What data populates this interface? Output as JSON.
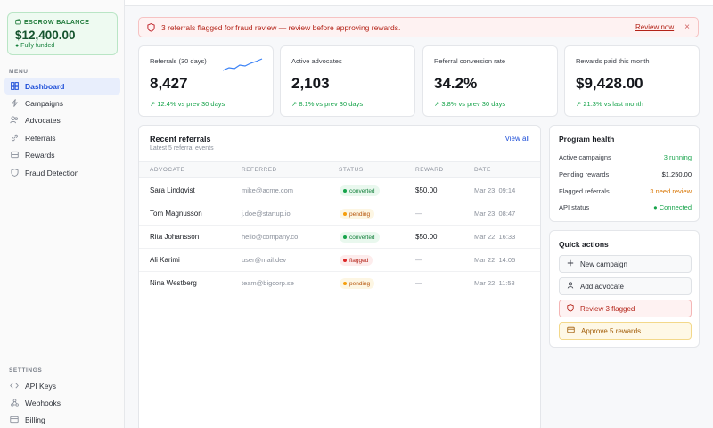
{
  "sidebar": {
    "escrow": {
      "label": "ESCROW BALANCE",
      "amount": "$12,400.00",
      "status": "● Fully funded"
    },
    "menu_label": "MENU",
    "menu_items": [
      {
        "label": "Dashboard",
        "icon": "grid-icon",
        "active": true
      },
      {
        "label": "Campaigns",
        "icon": "lightning-icon"
      },
      {
        "label": "Advocates",
        "icon": "users-icon"
      },
      {
        "label": "Referrals",
        "icon": "link-icon"
      },
      {
        "label": "Rewards",
        "icon": "box-icon"
      },
      {
        "label": "Fraud Detection",
        "icon": "shield-icon"
      }
    ],
    "settings_label": "SETTINGS",
    "settings_items": [
      {
        "label": "API Keys",
        "icon": "code-icon"
      },
      {
        "label": "Webhooks",
        "icon": "webhook-icon"
      },
      {
        "label": "Billing",
        "icon": "card-icon"
      }
    ]
  },
  "alert": {
    "text": "3 referrals flagged for fraud review — review before approving rewards.",
    "action": "Review now",
    "close": "×"
  },
  "kpis": [
    {
      "label": "Referrals (30 days)",
      "value": "8,427",
      "delta": "12.4% vs prev 30 days"
    },
    {
      "label": "Active advocates",
      "value": "2,103",
      "delta": "8.1% vs prev 30 days"
    },
    {
      "label": "Referral conversion rate",
      "value": "34.2%",
      "delta": "3.8% vs prev 30 days"
    },
    {
      "label": "Rewards paid this month",
      "value": "$9,428.00",
      "delta": "21.3% vs last month"
    }
  ],
  "recent": {
    "title": "Recent referrals",
    "subtitle": "Latest 5 referral events",
    "view_all": "View all",
    "columns": [
      "ADVOCATE",
      "REFERRED",
      "STATUS",
      "REWARD",
      "DATE"
    ],
    "rows": [
      {
        "advocate": "Sara Lindqvist",
        "referred": "mike@acme.com",
        "status": "converted",
        "reward": "$50.00",
        "date": "Mar 23, 09:14"
      },
      {
        "advocate": "Tom Magnusson",
        "referred": "j.doe@startup.io",
        "status": "pending",
        "reward": "—",
        "date": "Mar 23, 08:47"
      },
      {
        "advocate": "Rita Johansson",
        "referred": "hello@company.co",
        "status": "converted",
        "reward": "$50.00",
        "date": "Mar 22, 16:33"
      },
      {
        "advocate": "Ali Karimi",
        "referred": "user@mail.dev",
        "status": "flagged",
        "reward": "—",
        "date": "Mar 22, 14:05"
      },
      {
        "advocate": "Nina Westberg",
        "referred": "team@bigcorp.se",
        "status": "pending",
        "reward": "—",
        "date": "Mar 22, 11:58"
      }
    ]
  },
  "health": {
    "title": "Program health",
    "rows": [
      {
        "label": "Active campaigns",
        "value": "3 running"
      },
      {
        "label": "Pending rewards",
        "value": "$1,250.00"
      },
      {
        "label": "Flagged referrals",
        "value": "3 need review"
      },
      {
        "label": "API status",
        "value": "● Connected"
      }
    ]
  },
  "quick_actions": {
    "title": "Quick actions",
    "buttons": [
      {
        "label": "New campaign",
        "icon": "plus-icon"
      },
      {
        "label": "Add advocate",
        "icon": "user-icon"
      },
      {
        "label": "Review 3 flagged",
        "icon": "shield-icon"
      },
      {
        "label": "Approve 5 rewards",
        "icon": "card-icon"
      }
    ]
  },
  "colors": {
    "accent": "#1d4ed8",
    "positive": "#16a34a",
    "danger": "#b42318",
    "warning": "#d97706"
  }
}
